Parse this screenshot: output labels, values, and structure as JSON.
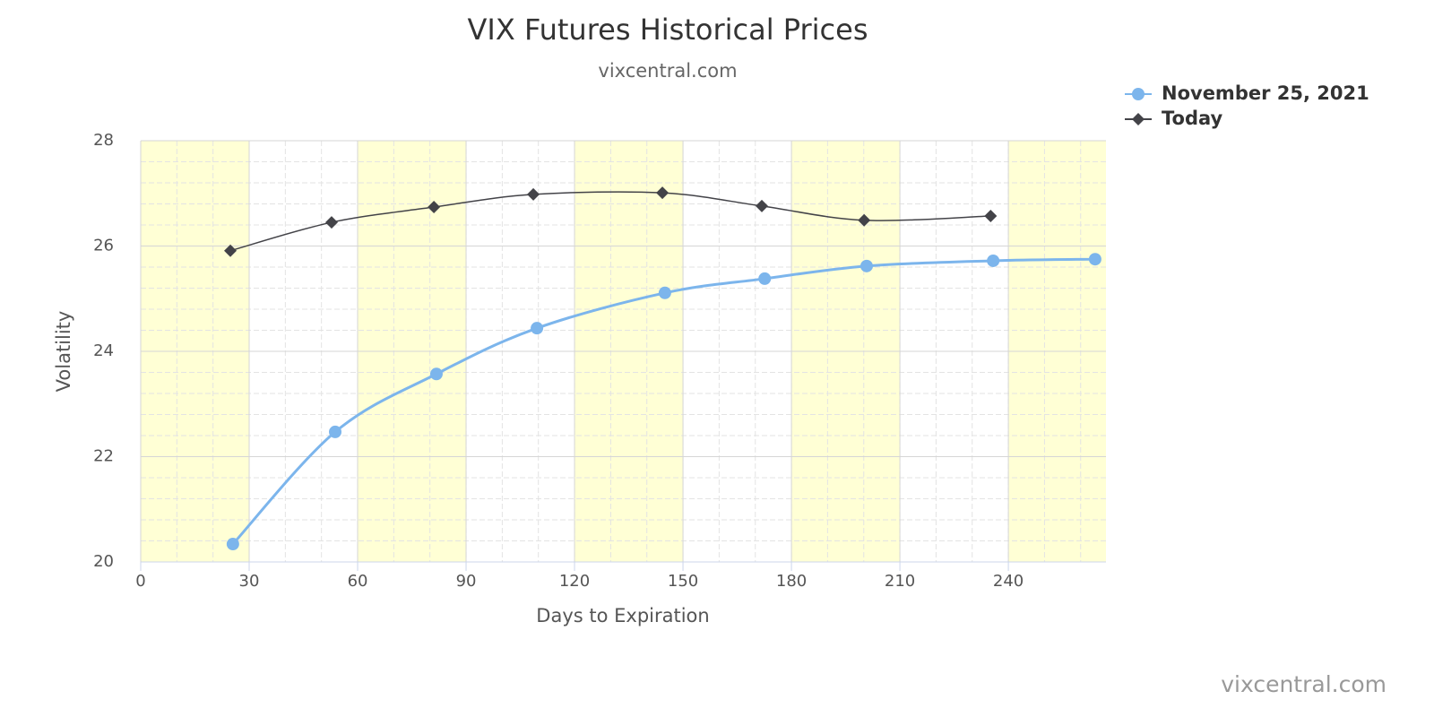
{
  "chart_data": {
    "type": "line",
    "title": "VIX Futures Historical Prices",
    "subtitle": "vixcentral.com",
    "credit": "vixcentral.com",
    "x_label": "Days to Expiration",
    "y_label": "Volatility",
    "xlim": [
      0,
      267
    ],
    "xticks": [
      0,
      30,
      60,
      90,
      120,
      150,
      180,
      210,
      240
    ],
    "ylim": [
      20,
      28
    ],
    "yticks": [
      20,
      22,
      24,
      26,
      28
    ],
    "alternate_band_color": "#ffffd5",
    "grid": true,
    "legend": "top-right",
    "series": [
      {
        "name": "November 25, 2021",
        "color": "#7cb5ec",
        "marker": "circle",
        "x": [
          25.5,
          53.8,
          81.8,
          109.6,
          145,
          172.6,
          200.8,
          235.8,
          264
        ],
        "values": [
          20.34,
          22.47,
          23.57,
          24.44,
          25.11,
          25.38,
          25.62,
          25.72,
          25.75
        ]
      },
      {
        "name": "Today",
        "color": "#434348",
        "marker": "diamond",
        "x": [
          24.8,
          52.8,
          81.1,
          108.6,
          144.3,
          171.8,
          200.1,
          235.1
        ],
        "values": [
          25.91,
          26.45,
          26.74,
          26.98,
          27.01,
          26.76,
          26.49,
          26.57
        ]
      }
    ]
  }
}
